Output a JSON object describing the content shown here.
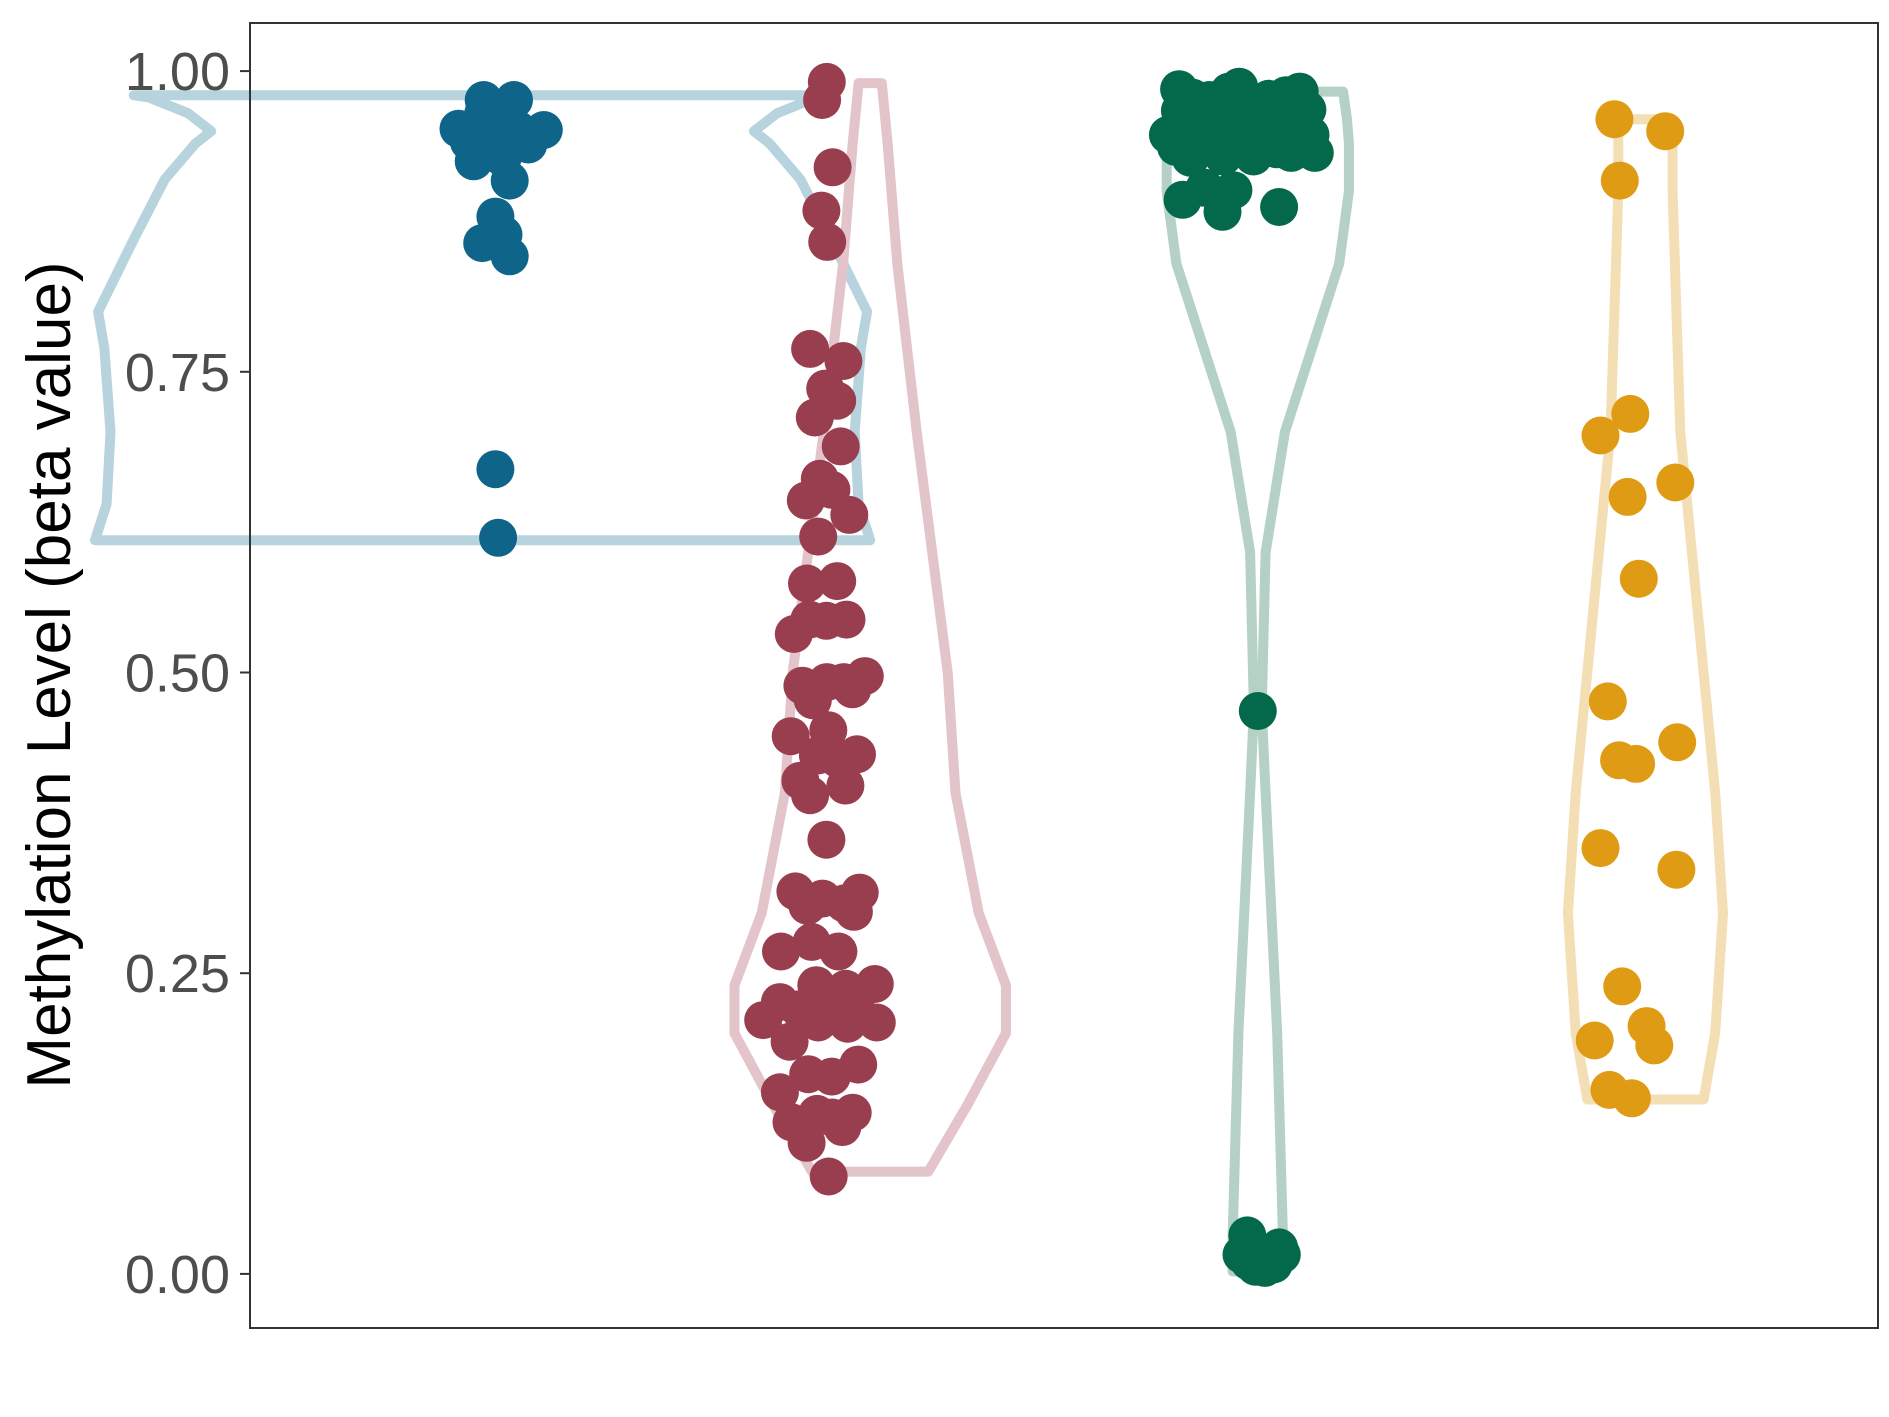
{
  "chart_data": {
    "type": "violin",
    "ylabel": "Methylation Level (beta value)",
    "xlabel": "",
    "ylim": [
      -0.045,
      1.04
    ],
    "yticks": [
      "0.00",
      "0.25",
      "0.50",
      "0.75",
      "1.00"
    ],
    "ytick_values": [
      0,
      0.25,
      0.5,
      0.75,
      1.0
    ],
    "grid": false,
    "legend": "none",
    "series": [
      {
        "color": "#0e6589",
        "outline": "#b7d3de",
        "points": [
          [
            0.938,
            0.952
          ],
          [
            0.965,
            0.941
          ],
          [
            0.977,
            0.925
          ],
          [
            1.002,
            0.965
          ],
          [
            1.003,
            0.976
          ],
          [
            1.008,
            0.934
          ],
          [
            1.025,
            0.951
          ],
          [
            1.049,
            0.953
          ],
          [
            1.052,
            0.928
          ],
          [
            1.07,
            0.909
          ],
          [
            1.081,
            0.976
          ],
          [
            1.092,
            0.951
          ],
          [
            1.118,
            0.939
          ],
          [
            1.158,
            0.951
          ],
          [
            0.999,
            0.857
          ],
          [
            1.033,
            0.879
          ],
          [
            1.054,
            0.864
          ],
          [
            1.07,
            0.846
          ],
          [
            1.033,
            0.669
          ],
          [
            1.04,
            0.612
          ]
        ],
        "violin": [
          [
            1.0,
            0.61
          ],
          [
            0.97,
            0.64
          ],
          [
            0.96,
            0.7
          ],
          [
            0.976,
            0.77
          ],
          [
            0.992,
            0.8
          ],
          [
            0.9,
            0.86
          ],
          [
            0.82,
            0.91
          ],
          [
            0.74,
            0.94
          ],
          [
            0.7,
            0.95
          ],
          [
            0.76,
            0.965
          ],
          [
            0.86,
            0.978
          ],
          [
            0.9,
            0.98
          ]
        ]
      },
      {
        "color": "#993e4f",
        "outline": "#e3c4ca",
        "points": [
          [
            1.888,
            0.991
          ],
          [
            1.876,
            0.976
          ],
          [
            1.903,
            0.92
          ],
          [
            1.874,
            0.884
          ],
          [
            1.889,
            0.858
          ],
          [
            1.845,
            0.769
          ],
          [
            1.931,
            0.759
          ],
          [
            1.884,
            0.736
          ],
          [
            1.915,
            0.726
          ],
          [
            1.857,
            0.712
          ],
          [
            1.924,
            0.688
          ],
          [
            1.87,
            0.661
          ],
          [
            1.9,
            0.652
          ],
          [
            1.834,
            0.643
          ],
          [
            1.946,
            0.631
          ],
          [
            1.866,
            0.613
          ],
          [
            1.915,
            0.576
          ],
          [
            1.837,
            0.574
          ],
          [
            1.843,
            0.544
          ],
          [
            1.887,
            0.543
          ],
          [
            1.939,
            0.544
          ],
          [
            1.803,
            0.532
          ],
          [
            1.825,
            0.489
          ],
          [
            1.888,
            0.492
          ],
          [
            1.932,
            0.492
          ],
          [
            1.954,
            0.486
          ],
          [
            1.986,
            0.497
          ],
          [
            1.852,
            0.477
          ],
          [
            1.892,
            0.452
          ],
          [
            1.795,
            0.447
          ],
          [
            1.865,
            0.431
          ],
          [
            1.917,
            0.428
          ],
          [
            1.966,
            0.432
          ],
          [
            1.82,
            0.41
          ],
          [
            1.845,
            0.398
          ],
          [
            1.936,
            0.406
          ],
          [
            1.887,
            0.361
          ],
          [
            1.807,
            0.318
          ],
          [
            1.838,
            0.306
          ],
          [
            1.877,
            0.312
          ],
          [
            1.933,
            0.308
          ],
          [
            1.973,
            0.317
          ],
          [
            1.958,
            0.301
          ],
          [
            1.849,
            0.276
          ],
          [
            1.918,
            0.268
          ],
          [
            1.77,
            0.268
          ],
          [
            1.861,
            0.24
          ],
          [
            1.937,
            0.237
          ],
          [
            1.767,
            0.226
          ],
          [
            1.817,
            0.22
          ],
          [
            1.905,
            0.22
          ],
          [
            1.962,
            0.226
          ],
          [
            2.012,
            0.241
          ],
          [
            1.866,
            0.209
          ],
          [
            1.724,
            0.211
          ],
          [
            1.942,
            0.208
          ],
          [
            2.017,
            0.209
          ],
          [
            1.792,
            0.193
          ],
          [
            1.84,
            0.166
          ],
          [
            1.901,
            0.164
          ],
          [
            1.969,
            0.174
          ],
          [
            1.767,
            0.151
          ],
          [
            1.797,
            0.126
          ],
          [
            1.863,
            0.133
          ],
          [
            1.902,
            0.13
          ],
          [
            1.928,
            0.122
          ],
          [
            1.955,
            0.134
          ],
          [
            1.836,
            0.109
          ],
          [
            1.893,
            0.081
          ]
        ],
        "violin": [
          [
            0.15,
            0.085
          ],
          [
            0.25,
            0.14
          ],
          [
            0.35,
            0.2
          ],
          [
            0.35,
            0.24
          ],
          [
            0.28,
            0.3
          ],
          [
            0.22,
            0.4
          ],
          [
            0.2,
            0.5
          ],
          [
            0.12,
            0.7
          ],
          [
            0.07,
            0.84
          ],
          [
            0.045,
            0.94
          ],
          [
            0.03,
            0.99
          ]
        ]
      },
      {
        "color": "#04694a",
        "outline": "#b5d1c6",
        "points": [
          [
            2.768,
            0.947
          ],
          [
            2.789,
            0.937
          ],
          [
            2.797,
            0.985
          ],
          [
            2.799,
            0.967
          ],
          [
            2.812,
            0.937
          ],
          [
            2.831,
            0.978
          ],
          [
            2.826,
            0.928
          ],
          [
            2.843,
            0.958
          ],
          [
            2.864,
            0.946
          ],
          [
            2.875,
            0.976
          ],
          [
            2.893,
            0.949
          ],
          [
            2.905,
            0.966
          ],
          [
            2.911,
            0.929
          ],
          [
            2.926,
            0.983
          ],
          [
            2.939,
            0.948
          ],
          [
            2.952,
            0.987
          ],
          [
            2.966,
            0.965
          ],
          [
            2.978,
            0.955
          ],
          [
            2.989,
            0.929
          ],
          [
            3.001,
            0.968
          ],
          [
            3.017,
            0.945
          ],
          [
            3.028,
            0.977
          ],
          [
            3.039,
            0.959
          ],
          [
            3.049,
            0.935
          ],
          [
            3.063,
            0.961
          ],
          [
            3.073,
            0.98
          ],
          [
            3.086,
            0.932
          ],
          [
            3.097,
            0.951
          ],
          [
            3.108,
            0.983
          ],
          [
            3.117,
            0.946
          ],
          [
            3.128,
            0.968
          ],
          [
            3.136,
            0.947
          ],
          [
            3.147,
            0.932
          ],
          [
            2.806,
            0.893
          ],
          [
            2.863,
            0.903
          ],
          [
            2.909,
            0.883
          ],
          [
            2.937,
            0.901
          ],
          [
            3.055,
            0.887
          ],
          [
            3.0,
            0.468
          ],
          [
            2.958,
            0.016
          ],
          [
            2.973,
            0.032
          ],
          [
            2.978,
            0.01
          ],
          [
            2.994,
            0.006
          ],
          [
            3.002,
            0.015
          ],
          [
            3.018,
            0.005
          ],
          [
            3.024,
            0.014
          ],
          [
            3.041,
            0.008
          ],
          [
            3.055,
            0.022
          ],
          [
            3.062,
            0.016
          ],
          [
            2.97,
            0.018
          ]
        ],
        "violin": [
          [
            0.065,
            0.002
          ],
          [
            0.065,
            0.03
          ],
          [
            0.05,
            0.2
          ],
          [
            0.02,
            0.4
          ],
          [
            0.01,
            0.47
          ],
          [
            0.02,
            0.6
          ],
          [
            0.07,
            0.7
          ],
          [
            0.15,
            0.78
          ],
          [
            0.21,
            0.84
          ],
          [
            0.235,
            0.9
          ],
          [
            0.235,
            0.94
          ],
          [
            0.23,
            0.96
          ],
          [
            0.22,
            0.983
          ]
        ]
      },
      {
        "color": "#e09b14",
        "outline": "#f4dfb5",
        "points": [
          [
            3.92,
            0.96
          ],
          [
            4.051,
            0.95
          ],
          [
            3.934,
            0.909
          ],
          [
            3.884,
            0.697
          ],
          [
            3.961,
            0.715
          ],
          [
            4.077,
            0.658
          ],
          [
            3.954,
            0.646
          ],
          [
            3.983,
            0.578
          ],
          [
            3.903,
            0.476
          ],
          [
            3.932,
            0.427
          ],
          [
            3.976,
            0.424
          ],
          [
            4.082,
            0.442
          ],
          [
            3.884,
            0.354
          ],
          [
            4.08,
            0.336
          ],
          [
            3.94,
            0.239
          ],
          [
            4.003,
            0.206
          ],
          [
            3.869,
            0.194
          ],
          [
            4.023,
            0.19
          ],
          [
            3.907,
            0.153
          ],
          [
            3.965,
            0.146
          ]
        ],
        "violin": [
          [
            0.15,
            0.145
          ],
          [
            0.18,
            0.2
          ],
          [
            0.2,
            0.3
          ],
          [
            0.18,
            0.4
          ],
          [
            0.15,
            0.5
          ],
          [
            0.12,
            0.6
          ],
          [
            0.09,
            0.7
          ],
          [
            0.08,
            0.8
          ],
          [
            0.07,
            0.9
          ],
          [
            0.07,
            0.96
          ]
        ]
      }
    ]
  }
}
